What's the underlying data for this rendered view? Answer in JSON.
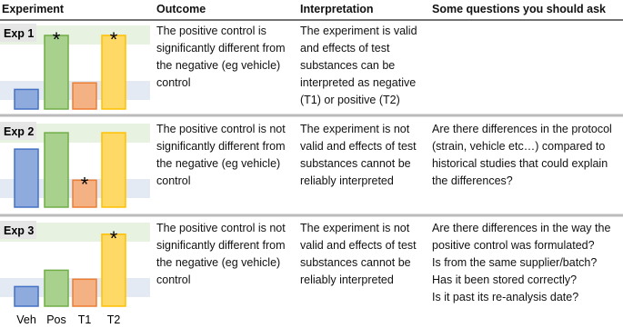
{
  "header": [
    "Experiment",
    "Outcome",
    "Interpretation",
    "Some questions you should ask"
  ],
  "chart": {
    "categories": [
      "Veh",
      "Pos",
      "T1",
      "T2"
    ],
    "colors": [
      "#8faadc",
      "#a9d18e",
      "#f4b183",
      "#ffd966"
    ],
    "edge_colors": [
      "#4472c4",
      "#70ad47",
      "#ed7d31",
      "#ffc000"
    ],
    "ylim": [
      0,
      100
    ]
  },
  "rows": [
    {
      "label": "Exp 1",
      "chart": {
        "values": [
          24,
          90,
          32,
          90
        ],
        "value_labels": [
          null,
          "*",
          null,
          "*"
        ]
      },
      "outcome": "The positive control is significantly different from the negative (eg vehicle) control",
      "interpretation": "The experiment is valid and effects of test substances can be interpreted as negative (T1) or positive (T2)"
    },
    {
      "label": "Exp 2",
      "chart": {
        "values": [
          71,
          91,
          33,
          91
        ],
        "value_labels": [
          null,
          null,
          "*",
          null
        ]
      },
      "outcome": "The positive control is not significantly different from the negative (eg vehicle) control",
      "interpretation": "The experiment is not valid and effects of test substances cannot be reliably interpreted",
      "questions": [
        "Are there differences in the protocol (strain, vehicle etc…) compared to historical studies that could explain the differences?"
      ]
    },
    {
      "label": "Exp 3",
      "chart": {
        "values": [
          24,
          44,
          33,
          88
        ],
        "value_labels": [
          null,
          null,
          null,
          "*"
        ]
      },
      "outcome": "The positive control is not significantly different from the negative (eg vehicle) control",
      "interpretation": "The experiment is not valid and effects of test substances cannot be reliably interpreted",
      "questions": [
        "Are there differences in the way the positive control was formulated?",
        "Is from the same supplier/batch?",
        "Has it been stored correctly?",
        "Is it past its re-analysis date?"
      ]
    }
  ]
}
